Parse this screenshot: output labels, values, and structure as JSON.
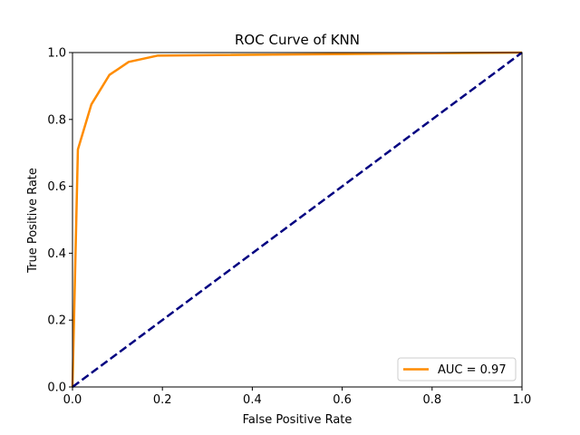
{
  "chart_data": {
    "type": "line",
    "title": "ROC Curve of KNN",
    "xlabel": "False Positive Rate",
    "ylabel": "True Positive Rate",
    "xlim": [
      0.0,
      1.0
    ],
    "ylim": [
      0.0,
      1.0
    ],
    "xticks": [
      "0.0",
      "0.2",
      "0.4",
      "0.6",
      "0.8",
      "1.0"
    ],
    "yticks": [
      "0.0",
      "0.2",
      "0.4",
      "0.6",
      "0.8",
      "1.0"
    ],
    "grid": false,
    "legend_position": "lower-right",
    "series": [
      {
        "name": "AUC = 0.97",
        "color": "#ff8c00",
        "style": "solid",
        "x": [
          0.0,
          0.012,
          0.042,
          0.082,
          0.125,
          0.19,
          1.0
        ],
        "y": [
          0.0,
          0.71,
          0.845,
          0.933,
          0.972,
          0.991,
          1.0
        ]
      },
      {
        "color": "#000080",
        "style": "dashed",
        "x": [
          0.0,
          1.0
        ],
        "y": [
          0.0,
          1.0
        ]
      }
    ]
  }
}
